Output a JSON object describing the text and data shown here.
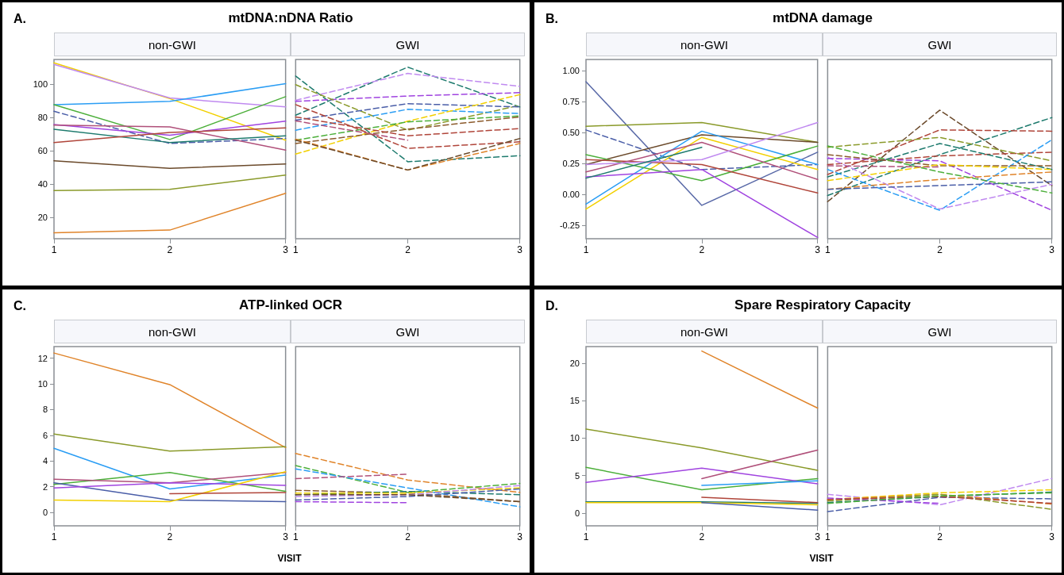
{
  "chart_data": [
    {
      "type": "line",
      "title": "mtDNA:nDNA Ratio",
      "subtitle": "non-GWI",
      "annotations": [
        "A."
      ],
      "x": [
        1,
        2,
        3
      ],
      "xlim": [
        1,
        3
      ],
      "xticks": [
        1,
        2,
        3
      ],
      "ylim": [
        7,
        115
      ],
      "yticks": [
        20,
        40,
        60,
        80,
        100
      ],
      "series": [
        {
          "color": "#f2d000",
          "line_style": "solid",
          "values": [
            113,
            91.4,
            66.4
          ]
        },
        {
          "color": "#c08af0",
          "line_style": "solid",
          "values": [
            112,
            91.8,
            86.4
          ]
        },
        {
          "color": "#2a9df4",
          "line_style": "solid",
          "values": [
            87.8,
            89.8,
            100.4
          ]
        },
        {
          "color": "#4caf3a",
          "line_style": "solid",
          "values": [
            87.8,
            66.8,
            92.6
          ]
        },
        {
          "color": "#4a5ea8",
          "line_style": "dashed",
          "values": [
            83.8,
            64.4,
            67.4
          ]
        },
        {
          "color": "#a044e0",
          "line_style": "solid",
          "values": [
            75.8,
            69.4,
            77.8
          ]
        },
        {
          "color": "#b0507a",
          "line_style": "solid",
          "values": [
            75.4,
            74.4,
            60.4
          ]
        },
        {
          "color": "#1e7b6e",
          "line_style": "solid",
          "values": [
            73,
            65,
            69
          ]
        },
        {
          "color": "#b0453a",
          "line_style": "solid",
          "values": [
            65,
            71,
            73.8
          ]
        },
        {
          "color": "#6b4a2b",
          "line_style": "solid",
          "values": [
            54,
            49.4,
            52
          ]
        },
        {
          "color": "#8a9a2a",
          "line_style": "solid",
          "values": [
            36,
            36.8,
            45.4
          ]
        },
        {
          "color": "#e0842a",
          "line_style": "solid",
          "values": [
            10.6,
            12.2,
            34.4
          ]
        }
      ]
    },
    {
      "type": "line",
      "subtitle": "GWI",
      "tick_labels": "x",
      "x": [
        1,
        2,
        3
      ],
      "xlim": [
        1,
        3
      ],
      "xticks": [
        1,
        2,
        3
      ],
      "ylim": [
        7,
        115
      ],
      "series": [
        {
          "color": "#1e7b6e",
          "line_style": "dashed",
          "values": [
            105,
            53.4,
            57
          ]
        },
        {
          "color": "#1e7b6e",
          "line_style": "dashed",
          "values": [
            81.4,
            110.4,
            86.4
          ]
        },
        {
          "color": "#c08af0",
          "line_style": "dashed",
          "values": [
            90.4,
            106.6,
            98.8
          ]
        },
        {
          "color": "#a044e0",
          "line_style": "dashed",
          "values": [
            89.8,
            93,
            95
          ]
        },
        {
          "color": "#8a9a2a",
          "line_style": "dashed",
          "values": [
            99.8,
            72.4,
            87.4
          ]
        },
        {
          "color": "#4a5ea8",
          "line_style": "dashed",
          "values": [
            78.4,
            88.4,
            86.4
          ]
        },
        {
          "color": "#2a9df4",
          "line_style": "dashed",
          "values": [
            72.4,
            85,
            82.4
          ]
        },
        {
          "color": "#f2d000",
          "line_style": "dashed",
          "values": [
            58,
            77.8,
            93.8
          ]
        },
        {
          "color": "#4caf3a",
          "line_style": "dashed",
          "values": [
            66.4,
            77.4,
            81
          ]
        },
        {
          "color": "#8b5a2b",
          "line_style": "dashed",
          "values": [
            64.4,
            73,
            80.4
          ]
        },
        {
          "color": "#b0453a",
          "line_style": "dashed",
          "values": [
            87.8,
            61.4,
            65.4
          ]
        },
        {
          "color": "#b0453a",
          "line_style": "dashed",
          "values": [
            80.4,
            69,
            73.4
          ]
        },
        {
          "color": "#b0507a",
          "line_style": "dashed",
          "values": [
            78,
            66.4,
            null
          ]
        },
        {
          "color": "#e0842a",
          "line_style": "dashed",
          "values": [
            67,
            48.4,
            64.4
          ]
        },
        {
          "color": "#6b4a2b",
          "line_style": "dashed",
          "values": [
            66.4,
            48.4,
            67.4
          ]
        }
      ]
    },
    {
      "type": "line",
      "title": "mtDNA damage",
      "subtitle": "non-GWI",
      "annotations": [
        "B."
      ],
      "x": [
        1,
        2,
        3
      ],
      "xlim": [
        1,
        3
      ],
      "xticks": [
        1,
        2,
        3
      ],
      "ylim": [
        -0.36,
        1.09
      ],
      "yticks": [
        {
          "value": -0.25,
          "label": "-0.25"
        },
        {
          "value": 0,
          "label": "0.00"
        },
        {
          "value": 0.25,
          "label": "0.25"
        },
        {
          "value": 0.5,
          "label": "0.50"
        },
        {
          "value": 0.75,
          "label": "0.75"
        },
        {
          "value": 1,
          "label": "1.00"
        }
      ],
      "series": [
        {
          "color": "#5a6aa8",
          "line_style": "solid",
          "values": [
            0.91,
            -0.09,
            0.34
          ]
        },
        {
          "color": "#4a5ea8",
          "line_style": "dashed",
          "values": [
            0.52,
            0.2,
            0.24
          ]
        },
        {
          "color": "#8a9a2a",
          "line_style": "solid",
          "values": [
            0.55,
            0.58,
            0.42
          ]
        },
        {
          "color": "#6b4a2b",
          "line_style": "solid",
          "values": [
            0.24,
            0.48,
            0.42
          ]
        },
        {
          "color": "#2a9df4",
          "line_style": "solid",
          "values": [
            -0.08,
            0.51,
            0.24
          ]
        },
        {
          "color": "#f2d000",
          "line_style": "solid",
          "values": [
            -0.12,
            0.46,
            0.2
          ]
        },
        {
          "color": "#4caf3a",
          "line_style": "solid",
          "values": [
            0.32,
            0.11,
            0.39
          ]
        },
        {
          "color": "#b0453a",
          "line_style": "solid",
          "values": [
            0.28,
            0.24,
            0.01
          ]
        },
        {
          "color": "#b0507a",
          "line_style": "solid",
          "values": [
            0.18,
            0.42,
            0.12
          ]
        },
        {
          "color": "#a044e0",
          "line_style": "solid",
          "values": [
            0.14,
            0.2,
            -0.35
          ]
        },
        {
          "color": "#c08af0",
          "line_style": "solid",
          "values": [
            0.24,
            0.28,
            0.58
          ]
        },
        {
          "color": "#1e7b6e",
          "line_style": "solid",
          "values": [
            0.13,
            0.38,
            null
          ]
        }
      ]
    },
    {
      "type": "line",
      "subtitle": "GWI",
      "tick_labels": "x",
      "x": [
        1,
        2,
        3
      ],
      "xlim": [
        1,
        3
      ],
      "xticks": [
        1,
        2,
        3
      ],
      "ylim": [
        -0.36,
        1.09
      ],
      "series": [
        {
          "color": "#6b4a2b",
          "line_style": "dashed",
          "values": [
            -0.06,
            0.68,
            0.07
          ]
        },
        {
          "color": "#1e7b6e",
          "line_style": "dashed",
          "values": [
            -0.01,
            0.32,
            0.62
          ]
        },
        {
          "color": "#b0453a",
          "line_style": "dashed",
          "values": [
            0.16,
            0.52,
            0.51
          ]
        },
        {
          "color": "#b0453a",
          "line_style": "dashed",
          "values": [
            0.24,
            0.31,
            0.34
          ]
        },
        {
          "color": "#8a9a2a",
          "line_style": "dashed",
          "values": [
            0.38,
            0.46,
            0.27
          ]
        },
        {
          "color": "#1e7b6e",
          "line_style": "dashed",
          "values": [
            0.14,
            0.41,
            0.2
          ]
        },
        {
          "color": "#2a9df4",
          "line_style": "dashed",
          "values": [
            0.2,
            -0.13,
            0.44
          ]
        },
        {
          "color": "#c08af0",
          "line_style": "dashed",
          "values": [
            0.3,
            -0.12,
            0.08
          ]
        },
        {
          "color": "#a044e0",
          "line_style": "dashed",
          "values": [
            0.29,
            0.27,
            -0.13
          ]
        },
        {
          "color": "#8b5a2b",
          "line_style": "dashed",
          "values": [
            0.32,
            0.23,
            0.23
          ]
        },
        {
          "color": "#f2d000",
          "line_style": "dashed",
          "values": [
            0.11,
            0.24,
            0.2
          ]
        },
        {
          "color": "#e0842a",
          "line_style": "dashed",
          "values": [
            0.04,
            0.12,
            0.18
          ]
        },
        {
          "color": "#4a5ea8",
          "line_style": "dashed",
          "values": [
            0.04,
            0.07,
            0.1
          ]
        },
        {
          "color": "#4caf3a",
          "line_style": "dashed",
          "values": [
            0.39,
            0.18,
            0.01
          ]
        },
        {
          "color": "#b0507a",
          "line_style": "dashed",
          "values": [
            0.23,
            0.22,
            null
          ]
        }
      ]
    },
    {
      "type": "line",
      "title": "ATP-linked OCR",
      "subtitle": "non-GWI",
      "annotations": [
        "C."
      ],
      "xlabel": "VISIT",
      "x": [
        1,
        2,
        3
      ],
      "xlim": [
        1,
        3
      ],
      "xticks": [
        1,
        2,
        3
      ],
      "ylim": [
        -1.05,
        12.9
      ],
      "yticks": [
        0,
        2,
        4,
        6,
        8,
        10,
        12
      ],
      "series": [
        {
          "color": "#e0842a",
          "line_style": "solid",
          "values": [
            12.4,
            9.94,
            5.04
          ]
        },
        {
          "color": "#8a9a2a",
          "line_style": "solid",
          "values": [
            6.1,
            4.77,
            5.1
          ]
        },
        {
          "color": "#2a9df4",
          "line_style": "solid",
          "values": [
            4.98,
            1.82,
            2.9
          ]
        },
        {
          "color": "#4caf3a",
          "line_style": "solid",
          "values": [
            2.17,
            3.1,
            1.63
          ]
        },
        {
          "color": "#4a5ea8",
          "line_style": "solid",
          "values": [
            2.3,
            0.96,
            0.83
          ]
        },
        {
          "color": "#b0507a",
          "line_style": "solid",
          "values": [
            2.57,
            2.3,
            3.1
          ]
        },
        {
          "color": "#a044e0",
          "line_style": "solid",
          "values": [
            1.9,
            2.3,
            2.1
          ]
        },
        {
          "color": "#f2d000",
          "line_style": "solid",
          "values": [
            0.96,
            0.83,
            3.16
          ]
        },
        {
          "color": "#b0453a",
          "line_style": "solid",
          "values": [
            null,
            1.45,
            1.55
          ]
        }
      ]
    },
    {
      "type": "line",
      "subtitle": "GWI",
      "tick_labels": "x",
      "x": [
        1,
        2,
        3
      ],
      "xlim": [
        1,
        3
      ],
      "xticks": [
        1,
        2,
        3
      ],
      "ylim": [
        -1.05,
        12.9
      ],
      "series": [
        {
          "color": "#e0842a",
          "line_style": "dashed",
          "values": [
            4.58,
            2.52,
            1.55
          ]
        },
        {
          "color": "#4caf3a",
          "line_style": "dashed",
          "values": [
            3.64,
            1.55,
            2.25
          ]
        },
        {
          "color": "#2a9df4",
          "line_style": "dashed",
          "values": [
            3.38,
            1.9,
            0.43
          ]
        },
        {
          "color": "#b0507a",
          "line_style": "dashed",
          "values": [
            2.62,
            2.97,
            null
          ]
        },
        {
          "color": "#8b5a2b",
          "line_style": "dashed",
          "values": [
            1.71,
            1.5,
            0.83
          ]
        },
        {
          "color": "#1e7b6e",
          "line_style": "dashed",
          "values": [
            1.37,
            1.63,
            1.37
          ]
        },
        {
          "color": "#f2d000",
          "line_style": "dashed",
          "values": [
            1.5,
            1.5,
            1.9
          ]
        },
        {
          "color": "#4a5ea8",
          "line_style": "dashed",
          "values": [
            0.96,
            1.23,
            1.82
          ]
        },
        {
          "color": "#a044e0",
          "line_style": "dashed",
          "values": [
            0.83,
            0.75,
            null
          ]
        },
        {
          "color": "#c08af0",
          "line_style": "dashed",
          "values": [
            1.23,
            1.37,
            2.09
          ]
        },
        {
          "color": "#6b4a2b",
          "line_style": "dashed",
          "values": [
            1.37,
            1.37,
            0.83
          ]
        }
      ]
    },
    {
      "type": "line",
      "title": "Spare Respiratory Capacity",
      "subtitle": "non-GWI",
      "annotations": [
        "D."
      ],
      "xlabel": "VISIT",
      "x": [
        1,
        2,
        3
      ],
      "xlim": [
        1,
        3
      ],
      "xticks": [
        1,
        2,
        3
      ],
      "ylim": [
        -1.7,
        22.2
      ],
      "yticks": [
        0,
        5,
        10,
        15,
        20
      ],
      "series": [
        {
          "color": "#e0842a",
          "line_style": "solid",
          "values": [
            null,
            21.6,
            14
          ]
        },
        {
          "color": "#8a9a2a",
          "line_style": "solid",
          "values": [
            11.2,
            8.7,
            5.7
          ]
        },
        {
          "color": "#4caf3a",
          "line_style": "solid",
          "values": [
            6.1,
            3.1,
            4.6
          ]
        },
        {
          "color": "#a044e0",
          "line_style": "solid",
          "values": [
            4.1,
            6,
            3.9
          ]
        },
        {
          "color": "#b0507a",
          "line_style": "solid",
          "values": [
            null,
            4.6,
            8.4
          ]
        },
        {
          "color": "#2a9df4",
          "line_style": "solid",
          "values": [
            null,
            3.7,
            4.3
          ]
        },
        {
          "color": "#1e7b6e",
          "line_style": "solid",
          "values": [
            1.5,
            1.5,
            1.3
          ]
        },
        {
          "color": "#f2d000",
          "line_style": "solid",
          "values": [
            1.4,
            1.4,
            1.1
          ]
        },
        {
          "color": "#b0453a",
          "line_style": "solid",
          "values": [
            null,
            2.1,
            1.4
          ]
        },
        {
          "color": "#4a5ea8",
          "line_style": "solid",
          "values": [
            null,
            1.4,
            0.4
          ]
        }
      ]
    },
    {
      "type": "line",
      "subtitle": "GWI",
      "tick_labels": "x",
      "x": [
        1,
        2,
        3
      ],
      "xlim": [
        1,
        3
      ],
      "xticks": [
        1,
        2,
        3
      ],
      "ylim": [
        -1.7,
        22.2
      ],
      "series": [
        {
          "color": "#c08af0",
          "line_style": "dashed",
          "values": [
            2.5,
            1.1,
            4.6
          ]
        },
        {
          "color": "#f2d000",
          "line_style": "dashed",
          "values": [
            1.8,
            2.7,
            3.1
          ]
        },
        {
          "color": "#1e7b6e",
          "line_style": "dashed",
          "values": [
            1.4,
            2.2,
            2.8
          ]
        },
        {
          "color": "#4a5ea8",
          "line_style": "dashed",
          "values": [
            0.2,
            2.1,
            1.9
          ]
        },
        {
          "color": "#e0842a",
          "line_style": "dashed",
          "values": [
            1.8,
            2.5,
            1.2
          ]
        },
        {
          "color": "#8a9a2a",
          "line_style": "dashed",
          "values": [
            1.6,
            2.5,
            0.5
          ]
        },
        {
          "color": "#a044e0",
          "line_style": "dashed",
          "values": [
            2,
            1.3,
            null
          ]
        },
        {
          "color": "#b0453a",
          "line_style": "dashed",
          "values": [
            1.8,
            2.2,
            1.3
          ]
        },
        {
          "color": "#4caf3a",
          "line_style": "dashed",
          "values": [
            1.3,
            2.3,
            2.7
          ]
        }
      ]
    }
  ]
}
